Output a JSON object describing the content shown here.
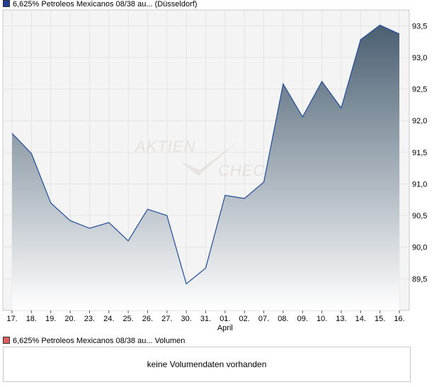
{
  "legend_price": {
    "label": "6,625% Petroleos Mexicanos 08/38 au... (Düsseldorf)",
    "color": "#1f3d99"
  },
  "legend_volume": {
    "label": "6,625% Petroleos Mexicanos 08/38 au... Volumen",
    "color": "#e06060"
  },
  "watermark": {
    "line1": "AKTIEN",
    "line2": "CHEC"
  },
  "volume_panel": {
    "message": "keine Volumendaten vorhanden"
  },
  "chart_data": {
    "type": "area",
    "categories": [
      "17.",
      "18.",
      "19.",
      "20.",
      "23.",
      "24.",
      "25.",
      "26.",
      "27.",
      "30.",
      "31.",
      "01.",
      "02.",
      "07.",
      "08.",
      "09.",
      "10.",
      "13.",
      "14.",
      "15.",
      "16."
    ],
    "month_label": {
      "text": "April",
      "category": "01."
    },
    "series": [
      {
        "values": [
          91.8,
          91.48,
          90.7,
          90.42,
          90.3,
          90.39,
          90.1,
          90.6,
          90.5,
          89.42,
          89.67,
          90.82,
          90.77,
          91.03,
          92.58,
          92.06,
          92.62,
          92.2,
          93.28,
          93.51,
          93.37
        ]
      }
    ],
    "y_ticks": [
      "89,5",
      "90,0",
      "90,5",
      "91,0",
      "91,5",
      "92,0",
      "92,5",
      "93,0",
      "93,5"
    ],
    "ylim": [
      89.0,
      93.75
    ],
    "grid": true,
    "colors": {
      "line": "#1f4d9a",
      "area_top": "#4a5f72",
      "area_bottom": "#ffffff",
      "grid": "#e4e4e4",
      "plot_bg": "#f4f4f4"
    }
  }
}
